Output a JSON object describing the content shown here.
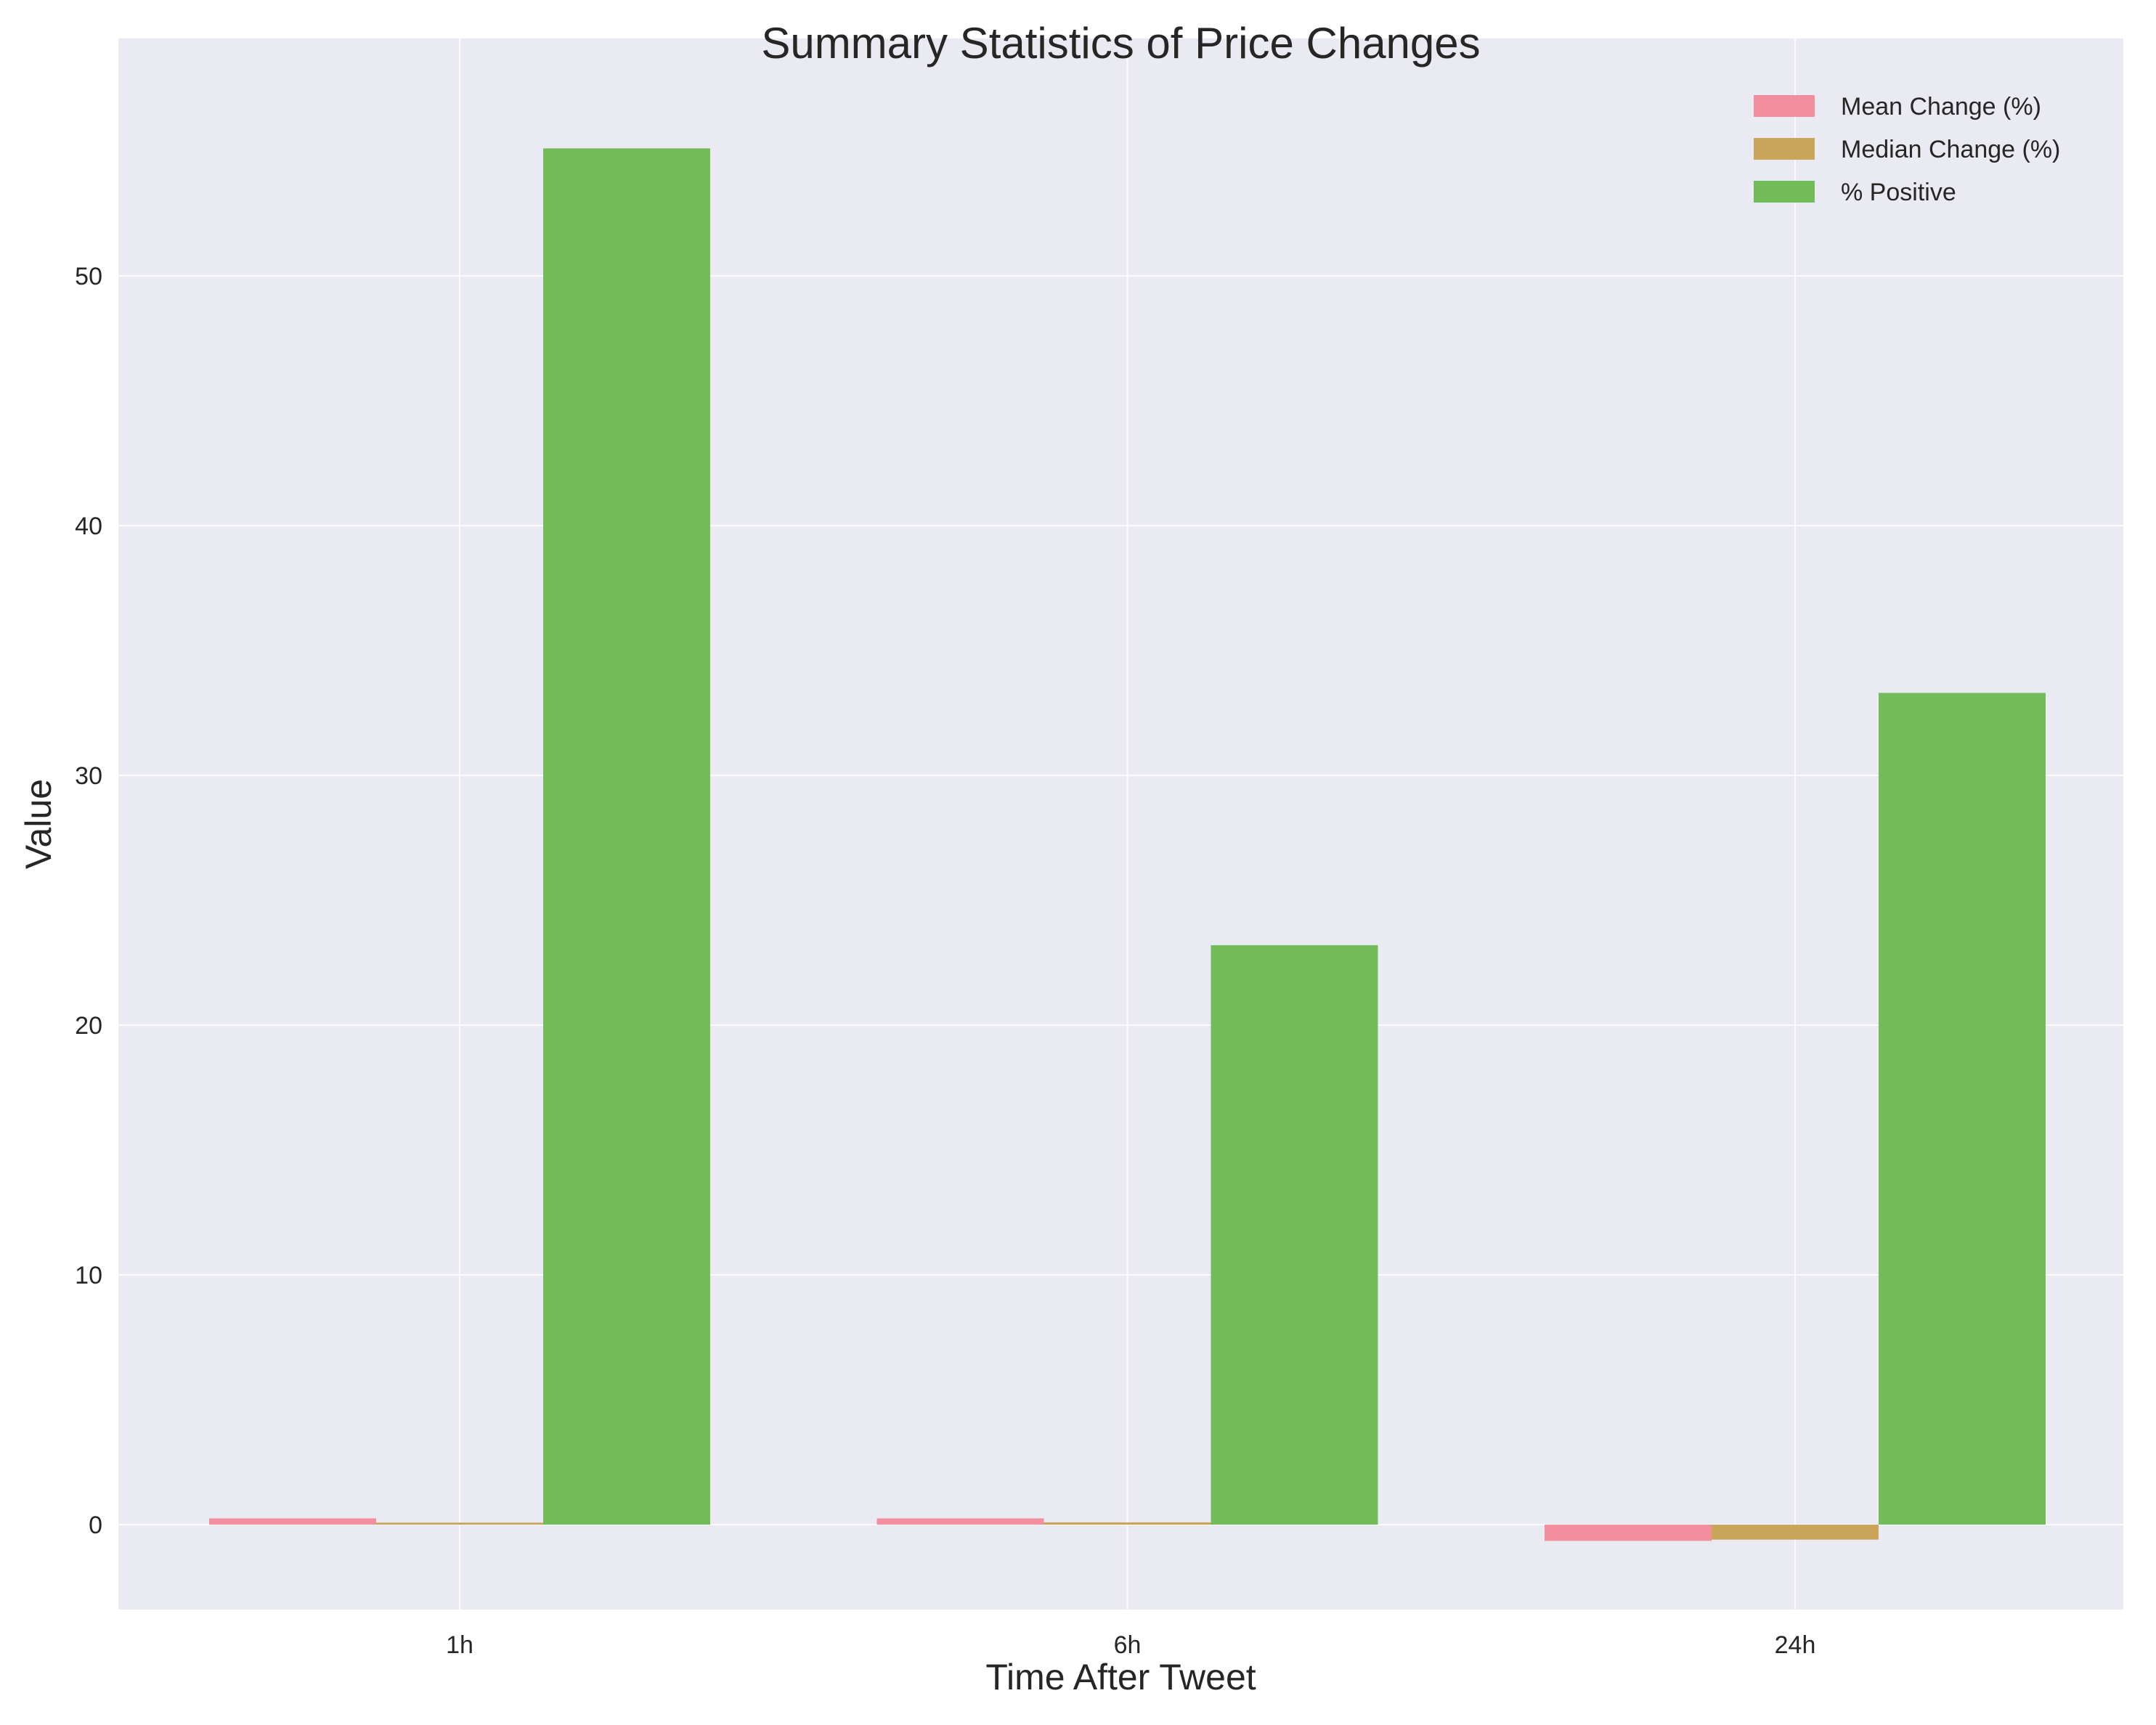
{
  "chart_data": {
    "type": "bar",
    "title": "Summary Statistics of Price Changes",
    "xlabel": "Time After Tweet",
    "ylabel": "Value",
    "categories": [
      "1h",
      "6h",
      "24h"
    ],
    "series": [
      {
        "name": "Mean Change (%)",
        "values": [
          0.25,
          0.25,
          -0.65
        ],
        "color": "#f28e9e"
      },
      {
        "name": "Median Change (%)",
        "values": [
          0.08,
          0.09,
          -0.6
        ],
        "color": "#c9a55a"
      },
      {
        "name": "% Positive",
        "values": [
          55.1,
          23.2,
          33.3
        ],
        "color": "#72bc5a"
      }
    ],
    "ylim": [
      -3.4,
      59.5
    ],
    "yticks": [
      0,
      10,
      20,
      30,
      40,
      50
    ],
    "grid": true,
    "legend_position": "top-right",
    "background_color": "#eaeaf2"
  }
}
